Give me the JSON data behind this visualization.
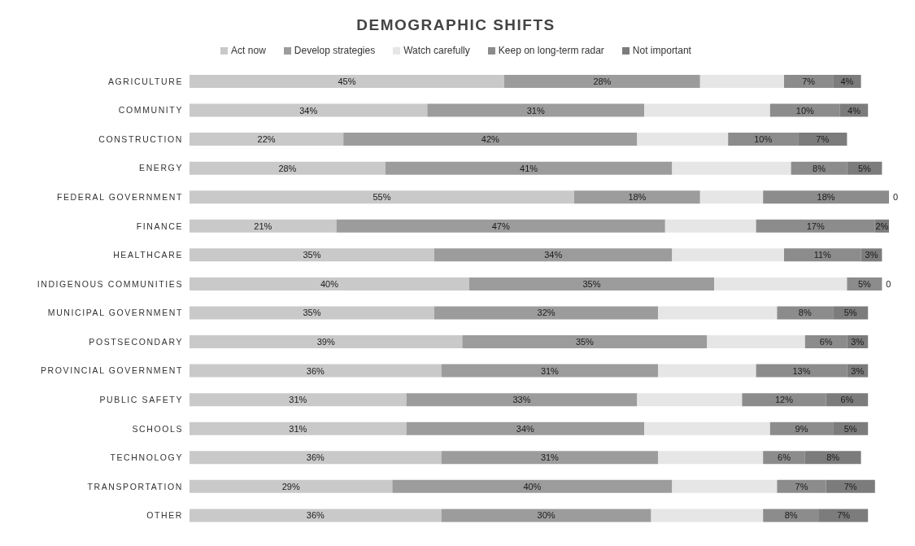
{
  "chart_data": {
    "type": "bar",
    "orientation": "horizontal",
    "stacked": true,
    "title": "DEMOGRAPHIC SHIFTS",
    "legend": "top",
    "tick_labels": "y",
    "categories": [
      "AGRICULTURE",
      "COMMUNITY",
      "CONSTRUCTION",
      "ENERGY",
      "FEDERAL GOVERNMENT",
      "FINANCE",
      "HEALTHCARE",
      "INDIGENOUS COMMUNITIES",
      "MUNICIPAL GOVERNMENT",
      "POSTSECONDARY",
      "PROVINCIAL GOVERNMENT",
      "PUBLIC SAFETY",
      "SCHOOLS",
      "TECHNOLOGY",
      "TRANSPORTATION",
      "OTHER"
    ],
    "series": [
      {
        "name": "Act now",
        "color": "#c9c9c9",
        "values": [
          45,
          34,
          22,
          28,
          55,
          21,
          35,
          40,
          35,
          39,
          36,
          31,
          31,
          36,
          29,
          36
        ],
        "value_labels": [
          "45%",
          "34%",
          "22%",
          "28%",
          "55%",
          "21%",
          "35%",
          "40%",
          "35%",
          "39%",
          "36%",
          "31%",
          "31%",
          "36%",
          "29%",
          "36%"
        ]
      },
      {
        "name": "Develop strategies",
        "color": "#9c9c9c",
        "values": [
          28,
          31,
          42,
          41,
          18,
          47,
          34,
          35,
          32,
          35,
          31,
          33,
          34,
          31,
          40,
          30
        ],
        "value_labels": [
          "28%",
          "31%",
          "42%",
          "41%",
          "18%",
          "47%",
          "34%",
          "35%",
          "32%",
          "35%",
          "31%",
          "33%",
          "34%",
          "31%",
          "40%",
          "30%"
        ]
      },
      {
        "name": "Watch carefully",
        "color": "#e6e6e6",
        "values": [
          12,
          18,
          13,
          17,
          9,
          13,
          16,
          19,
          17,
          14,
          14,
          15,
          18,
          15,
          15,
          16
        ]
      },
      {
        "name": "Keep on long-term radar",
        "color": "#8c8c8c",
        "values": [
          7,
          10,
          10,
          8,
          18,
          17,
          11,
          5,
          8,
          6,
          13,
          12,
          9,
          6,
          7,
          8
        ],
        "value_labels": [
          "7%",
          "10%",
          "10%",
          "8%",
          "18%",
          "17%",
          "11%",
          "5%",
          "8%",
          "6%",
          "13%",
          "12%",
          "9%",
          "6%",
          "7%",
          "8%"
        ]
      },
      {
        "name": "Not important",
        "color": "#7c7c7c",
        "values": [
          4,
          4,
          7,
          5,
          0,
          2,
          3,
          0,
          5,
          3,
          3,
          6,
          5,
          8,
          7,
          7
        ],
        "value_labels": [
          "4%",
          "4%",
          "7%",
          "5%",
          "0",
          "2%",
          "3%",
          "0",
          "5%",
          "3%",
          "3%",
          "6%",
          "5%",
          "8%",
          "7%",
          "7%"
        ]
      }
    ]
  }
}
